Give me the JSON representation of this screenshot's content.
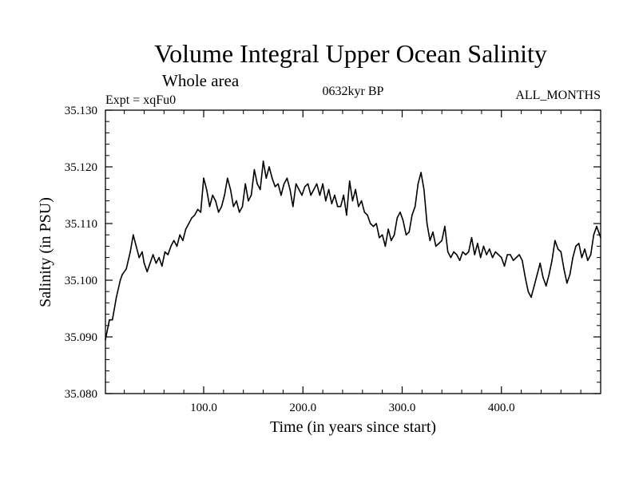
{
  "chart_data": {
    "type": "line",
    "title": "Volume Integral Upper Ocean Salinity",
    "subtitle": "Whole area",
    "experiment_label": "Expt = xqFu0",
    "period_label": "0632kyr BP",
    "months_label": "ALL_MONTHS",
    "xlabel": "Time (in years since start)",
    "ylabel": "Salinity (in PSU)",
    "xlim": [
      1,
      500
    ],
    "ylim": [
      35.08,
      35.13
    ],
    "x_ticks": [
      100,
      200,
      300,
      400
    ],
    "x_tick_labels": [
      "100.0",
      "200.0",
      "300.0",
      "400.0"
    ],
    "y_ticks": [
      35.08,
      35.09,
      35.1,
      35.11,
      35.12,
      35.13
    ],
    "y_tick_labels": [
      "35.080",
      "35.090",
      "35.100",
      "35.110",
      "35.120",
      "35.130"
    ],
    "grid": false,
    "series": [
      {
        "name": "salinity",
        "color": "#000000",
        "x": [
          1,
          5,
          8,
          12,
          16,
          18,
          22,
          26,
          29,
          32,
          35,
          38,
          40,
          43,
          46,
          49,
          52,
          55,
          58,
          61,
          64,
          67,
          70,
          73,
          76,
          79,
          82,
          85,
          88,
          91,
          94,
          97,
          100,
          103,
          106,
          109,
          112,
          115,
          118,
          121,
          124,
          127,
          130,
          133,
          136,
          139,
          142,
          145,
          148,
          151,
          154,
          157,
          160,
          163,
          166,
          169,
          172,
          175,
          178,
          181,
          184,
          187,
          190,
          193,
          196,
          199,
          202,
          205,
          208,
          211,
          214,
          217,
          220,
          223,
          226,
          229,
          232,
          235,
          238,
          241,
          244,
          247,
          250,
          253,
          256,
          259,
          262,
          265,
          268,
          271,
          274,
          277,
          280,
          283,
          286,
          289,
          292,
          295,
          298,
          301,
          304,
          307,
          310,
          313,
          316,
          319,
          322,
          325,
          328,
          331,
          334,
          337,
          340,
          343,
          346,
          349,
          352,
          355,
          358,
          361,
          364,
          367,
          370,
          373,
          376,
          379,
          382,
          385,
          388,
          391,
          394,
          397,
          400,
          403,
          406,
          409,
          412,
          415,
          418,
          421,
          424,
          427,
          430,
          433,
          436,
          439,
          442,
          445,
          448,
          451,
          454,
          457,
          460,
          463,
          466,
          469,
          472,
          475,
          478,
          481,
          484,
          487,
          490,
          493,
          496,
          500
        ],
        "y": [
          35.0895,
          35.093,
          35.093,
          35.097,
          35.1,
          35.101,
          35.102,
          35.105,
          35.108,
          35.106,
          35.104,
          35.105,
          35.103,
          35.1015,
          35.103,
          35.1045,
          35.103,
          35.104,
          35.1025,
          35.105,
          35.1045,
          35.106,
          35.107,
          35.106,
          35.108,
          35.107,
          35.109,
          35.11,
          35.111,
          35.1115,
          35.1125,
          35.112,
          35.118,
          35.116,
          35.113,
          35.115,
          35.114,
          35.112,
          35.113,
          35.115,
          35.118,
          35.116,
          35.113,
          35.114,
          35.112,
          35.113,
          35.117,
          35.114,
          35.115,
          35.1195,
          35.117,
          35.116,
          35.121,
          35.118,
          35.12,
          35.118,
          35.1165,
          35.117,
          35.115,
          35.117,
          35.118,
          35.116,
          35.113,
          35.117,
          35.116,
          35.115,
          35.1165,
          35.117,
          35.115,
          35.116,
          35.117,
          35.115,
          35.117,
          35.114,
          35.116,
          35.1135,
          35.115,
          35.113,
          35.113,
          35.115,
          35.1115,
          35.1175,
          35.114,
          35.116,
          35.113,
          35.114,
          35.112,
          35.1115,
          35.11,
          35.1095,
          35.11,
          35.1075,
          35.108,
          35.106,
          35.109,
          35.107,
          35.108,
          35.111,
          35.112,
          35.1105,
          35.108,
          35.1085,
          35.1115,
          35.113,
          35.117,
          35.119,
          35.116,
          35.11,
          35.107,
          35.1085,
          35.106,
          35.1065,
          35.107,
          35.1095,
          35.105,
          35.104,
          35.105,
          35.1045,
          35.1035,
          35.105,
          35.1045,
          35.105,
          35.1075,
          35.1045,
          35.1065,
          35.104,
          35.106,
          35.1045,
          35.1055,
          35.104,
          35.105,
          35.1045,
          35.104,
          35.1025,
          35.1045,
          35.1045,
          35.1035,
          35.104,
          35.1045,
          35.1035,
          35.1005,
          35.098,
          35.097,
          35.099,
          35.101,
          35.103,
          35.1005,
          35.099,
          35.101,
          35.1035,
          35.107,
          35.1055,
          35.105,
          35.102,
          35.0995,
          35.101,
          35.104,
          35.106,
          35.1065,
          35.104,
          35.1055,
          35.1035,
          35.1045,
          35.108,
          35.1095,
          35.1075
        ]
      }
    ]
  }
}
